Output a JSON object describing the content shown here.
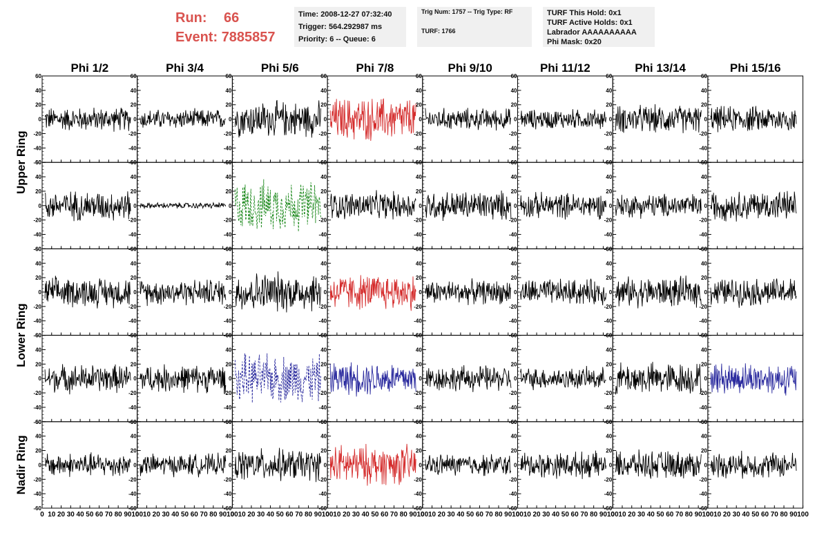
{
  "header": {
    "run_label": "Run:",
    "run_value": "66",
    "event_label": "Event:",
    "event_value": "7885857",
    "time_line": "Time: 2008-12-27 07:32:40",
    "trigger_line": "Trigger: 564.292987 ms",
    "priority_line": "Priority: 6 -- Queue: 6",
    "trig_line": "Trig Num: 1757 -- Trig Type: RF",
    "turf_line": "TURF: 1766",
    "hold_line": "TURF This Hold: 0x1",
    "active_line": "TURF Active Holds: 0x1",
    "labrador_line": "Labrador AAAAAAAAAA",
    "phimask_line": "Phi Mask: 0x20"
  },
  "colors": {
    "default": "#000000",
    "red": "#d42a2a",
    "green": "#1e8a1e",
    "blue": "#2a2a9e"
  },
  "chart_data": {
    "type": "line",
    "columns": [
      "Phi 1/2",
      "Phi 3/4",
      "Phi 5/6",
      "Phi 7/8",
      "Phi 9/10",
      "Phi 11/12",
      "Phi 13/14",
      "Phi 15/16"
    ],
    "row_groups": [
      {
        "label": "Upper Ring",
        "rows": [
          0,
          1
        ]
      },
      {
        "label": "Lower Ring",
        "rows": [
          2,
          3
        ]
      },
      {
        "label": "Nadir Ring",
        "rows": [
          4
        ]
      }
    ],
    "xlim": [
      0,
      100
    ],
    "ylim": [
      -60,
      60
    ],
    "x_ticks": [
      "0",
      "10",
      "20",
      "30",
      "40",
      "50",
      "60",
      "70",
      "80",
      "90",
      "100"
    ],
    "y_ticks": [
      "60",
      "40",
      "20",
      "0",
      "-20",
      "-40",
      "-60"
    ],
    "x_range_samples": [
      3,
      93
    ],
    "panels": [
      [
        {
          "amp": 12,
          "color": "default",
          "style": "solid"
        },
        {
          "amp": 10,
          "color": "default",
          "style": "solid"
        },
        {
          "amp": 18,
          "color": "default",
          "style": "solid"
        },
        {
          "amp": 22,
          "color": "red",
          "style": "solid"
        },
        {
          "amp": 11,
          "color": "default",
          "style": "solid"
        },
        {
          "amp": 10,
          "color": "default",
          "style": "solid"
        },
        {
          "amp": 14,
          "color": "default",
          "style": "solid"
        },
        {
          "amp": 13,
          "color": "default",
          "style": "solid"
        }
      ],
      [
        {
          "amp": 15,
          "color": "default",
          "style": "solid"
        },
        {
          "amp": 3,
          "color": "default",
          "style": "solid"
        },
        {
          "amp": 25,
          "color": "green",
          "style": "dashed"
        },
        {
          "amp": 14,
          "color": "default",
          "style": "solid"
        },
        {
          "amp": 15,
          "color": "default",
          "style": "solid"
        },
        {
          "amp": 13,
          "color": "default",
          "style": "solid"
        },
        {
          "amp": 12,
          "color": "default",
          "style": "solid"
        },
        {
          "amp": 15,
          "color": "default",
          "style": "solid"
        }
      ],
      [
        {
          "amp": 15,
          "color": "default",
          "style": "solid"
        },
        {
          "amp": 13,
          "color": "default",
          "style": "solid"
        },
        {
          "amp": 20,
          "color": "default",
          "style": "solid"
        },
        {
          "amp": 18,
          "color": "red",
          "style": "solid"
        },
        {
          "amp": 12,
          "color": "default",
          "style": "solid"
        },
        {
          "amp": 13,
          "color": "default",
          "style": "solid"
        },
        {
          "amp": 15,
          "color": "default",
          "style": "solid"
        },
        {
          "amp": 14,
          "color": "default",
          "style": "solid"
        }
      ],
      [
        {
          "amp": 14,
          "color": "default",
          "style": "solid"
        },
        {
          "amp": 14,
          "color": "default",
          "style": "solid"
        },
        {
          "amp": 24,
          "color": "blue",
          "style": "dashed"
        },
        {
          "amp": 17,
          "color": "blue",
          "style": "solid"
        },
        {
          "amp": 13,
          "color": "default",
          "style": "solid"
        },
        {
          "amp": 11,
          "color": "default",
          "style": "solid"
        },
        {
          "amp": 16,
          "color": "default",
          "style": "solid"
        },
        {
          "amp": 16,
          "color": "blue",
          "style": "solid"
        }
      ],
      [
        {
          "amp": 12,
          "color": "default",
          "style": "solid"
        },
        {
          "amp": 11,
          "color": "default",
          "style": "solid"
        },
        {
          "amp": 16,
          "color": "default",
          "style": "solid"
        },
        {
          "amp": 20,
          "color": "red",
          "style": "solid"
        },
        {
          "amp": 11,
          "color": "default",
          "style": "solid"
        },
        {
          "amp": 13,
          "color": "default",
          "style": "solid"
        },
        {
          "amp": 14,
          "color": "default",
          "style": "solid"
        },
        {
          "amp": 13,
          "color": "default",
          "style": "solid"
        }
      ]
    ]
  }
}
